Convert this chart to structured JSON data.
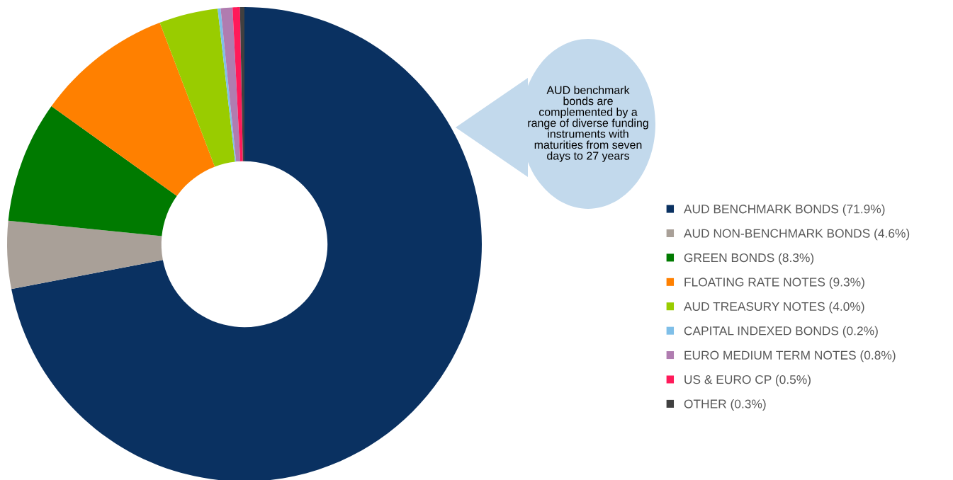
{
  "chart_data": {
    "type": "donut",
    "categories": [
      "AUD BENCHMARK BONDS (71.9%)",
      "AUD NON-BENCHMARK BONDS (4.6%)",
      "GREEN BONDS (8.3%)",
      "FLOATING RATE NOTES (9.3%)",
      "AUD TREASURY NOTES (4.0%)",
      "CAPITAL INDEXED BONDS (0.2%)",
      "EURO MEDIUM TERM NOTES (0.8%)",
      "US & EURO CP (0.5%)",
      "OTHER (0.3%)"
    ],
    "values": [
      71.9,
      4.6,
      8.3,
      9.3,
      4.0,
      0.2,
      0.8,
      0.5,
      0.3
    ],
    "colors": [
      "#0a3161",
      "#a9a098",
      "#007a00",
      "#ff8000",
      "#99cc00",
      "#7fbfe8",
      "#b07cb0",
      "#ff1a5a",
      "#404040"
    ],
    "annotations": [
      "AUD benchmark\nbonds are\ncomplemented by a\nrange of diverse funding\ninstruments with\nmaturities from seven\ndays to 27 years"
    ],
    "legend": "right"
  }
}
